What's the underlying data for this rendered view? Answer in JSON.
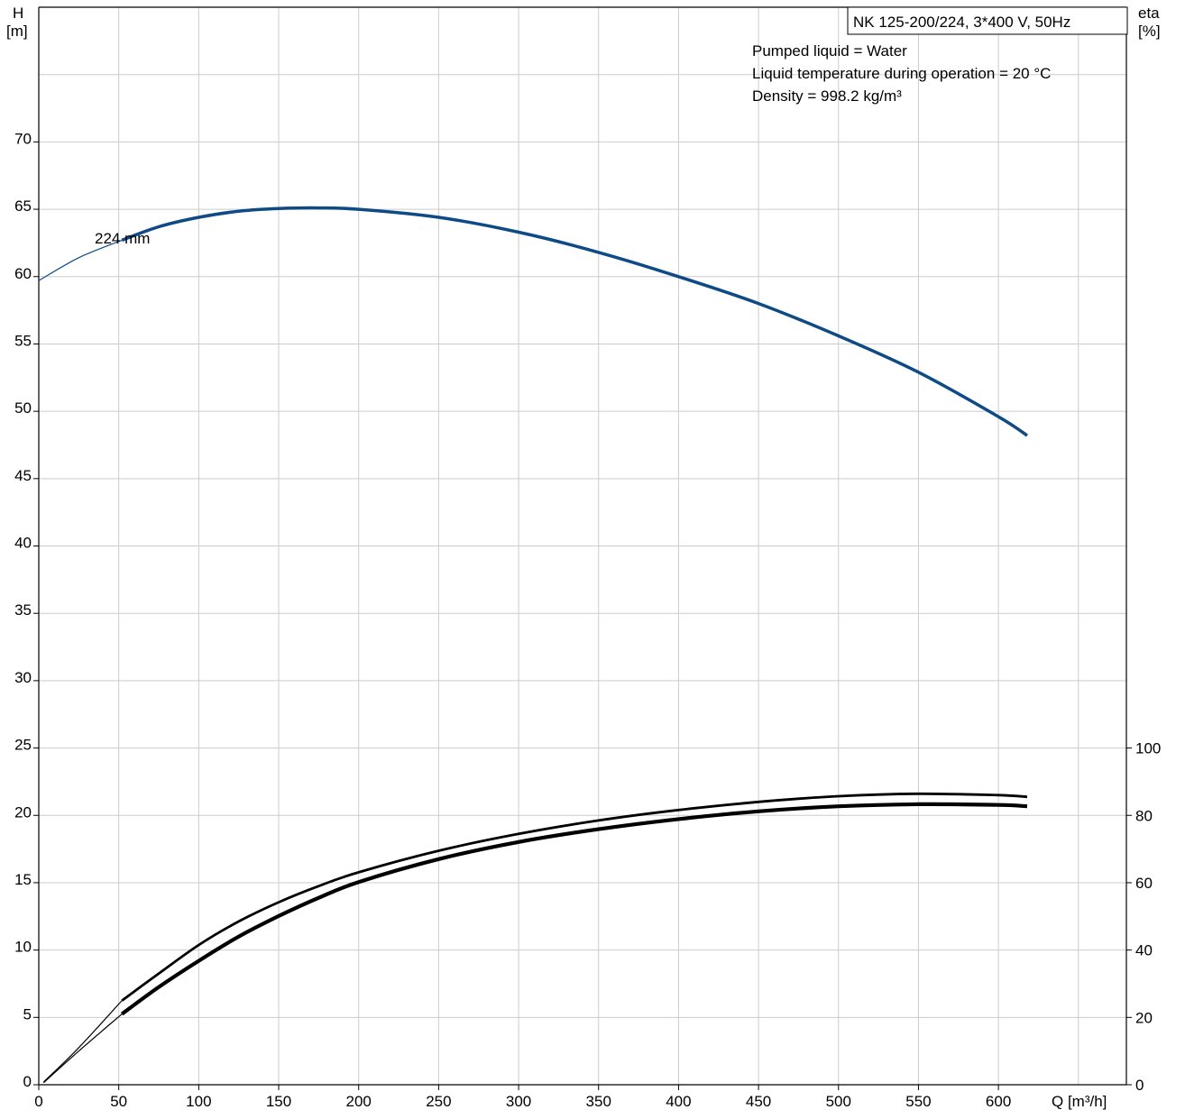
{
  "chart_data": {
    "type": "line",
    "title_box": "NK 125-200/224, 3*400 V, 50Hz",
    "info_lines": [
      "Pumped liquid = Water",
      "Liquid temperature during operation = 20 °C",
      "Density = 998.2 kg/m³"
    ],
    "x_axis": {
      "label": "Q [m³/h]",
      "range": [
        0,
        680
      ],
      "ticks": [
        0,
        50,
        100,
        150,
        200,
        250,
        300,
        350,
        400,
        450,
        500,
        550,
        600
      ]
    },
    "y_axis_left": {
      "label_line1": "H",
      "label_line2": "[m]",
      "range": [
        0,
        80
      ],
      "ticks": [
        0,
        5,
        10,
        15,
        20,
        25,
        30,
        35,
        40,
        45,
        50,
        55,
        60,
        65,
        70
      ]
    },
    "y_axis_right": {
      "label_line1": "eta",
      "label_line2": "[%]",
      "range": [
        0,
        100
      ],
      "ticks": [
        0,
        20,
        40,
        60,
        80,
        100
      ]
    },
    "grid": true,
    "curve_annotation": "224 mm",
    "series": [
      {
        "axis": "left",
        "color": "#0e4a86",
        "points": [
          [
            52,
            62.7
          ],
          [
            75,
            63.7
          ],
          [
            100,
            64.4
          ],
          [
            125,
            64.85
          ],
          [
            150,
            65.05
          ],
          [
            175,
            65.1
          ],
          [
            200,
            65.0
          ],
          [
            250,
            64.4
          ],
          [
            300,
            63.3
          ],
          [
            350,
            61.8
          ],
          [
            400,
            60.0
          ],
          [
            450,
            58.0
          ],
          [
            500,
            55.6
          ],
          [
            550,
            52.9
          ],
          [
            600,
            49.6
          ],
          [
            618,
            48.2
          ]
        ],
        "dashed_start": [
          [
            0,
            59.7
          ],
          [
            25,
            61.4
          ],
          [
            52,
            62.7
          ]
        ]
      },
      {
        "axis": "right",
        "color": "#000000",
        "points": [
          [
            52,
            25
          ],
          [
            75,
            33
          ],
          [
            100,
            41.5
          ],
          [
            125,
            48.5
          ],
          [
            150,
            54.2
          ],
          [
            175,
            59.0
          ],
          [
            200,
            63.1
          ],
          [
            250,
            69.5
          ],
          [
            300,
            74.5
          ],
          [
            350,
            78.5
          ],
          [
            400,
            81.6
          ],
          [
            450,
            84.0
          ],
          [
            500,
            85.7
          ],
          [
            550,
            86.4
          ],
          [
            600,
            86.0
          ],
          [
            618,
            85.5
          ]
        ],
        "dashed_start": [
          [
            3,
            0.8
          ],
          [
            25,
            11
          ],
          [
            52,
            25
          ]
        ]
      },
      {
        "axis": "right",
        "color": "#000000",
        "points": [
          [
            52,
            21
          ],
          [
            75,
            29
          ],
          [
            100,
            36.8
          ],
          [
            125,
            44
          ],
          [
            150,
            50.1
          ],
          [
            175,
            55.5
          ],
          [
            200,
            60.2
          ],
          [
            250,
            67.0
          ],
          [
            300,
            72.1
          ],
          [
            350,
            75.9
          ],
          [
            400,
            78.9
          ],
          [
            450,
            81.2
          ],
          [
            500,
            82.7
          ],
          [
            550,
            83.3
          ],
          [
            600,
            83.1
          ],
          [
            618,
            82.7
          ]
        ],
        "dashed_start": [
          [
            3,
            0.6
          ],
          [
            25,
            10
          ],
          [
            52,
            21
          ]
        ]
      }
    ]
  }
}
